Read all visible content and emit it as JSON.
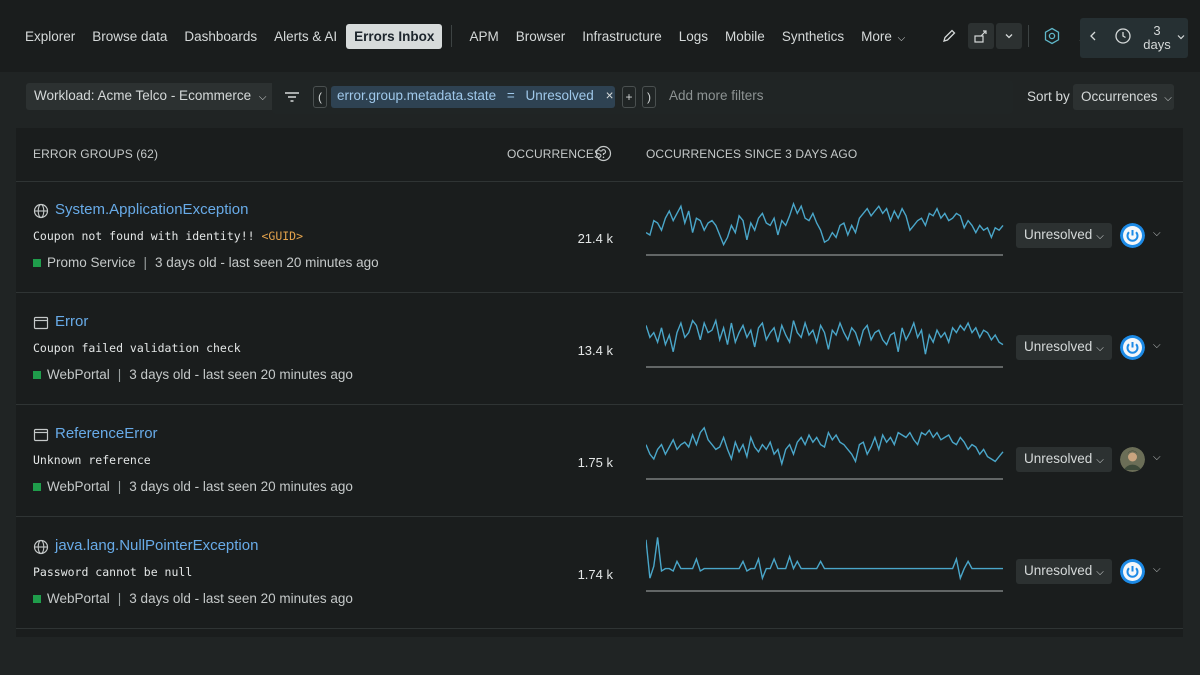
{
  "nav": {
    "items": [
      "Explorer",
      "Browse data",
      "Dashboards",
      "Alerts & AI",
      "Errors Inbox"
    ],
    "items2": [
      "APM",
      "Browser",
      "Infrastructure",
      "Logs",
      "Mobile",
      "Synthetics"
    ],
    "more": "More",
    "time_value": "3",
    "time_unit": "days"
  },
  "filters": {
    "workload": "Workload: Acme Telco - Ecommerce",
    "open_paren": "(",
    "close_paren": ")",
    "chip_field": "error.group.metadata.state",
    "chip_op": "=",
    "chip_value": "Unresolved",
    "chip_remove": "×",
    "plus": "+",
    "add_more_placeholder": "Add more filters",
    "sort_label": "Sort by",
    "sort_value": "Occurrences"
  },
  "table": {
    "col_groups": "ERROR GROUPS (62)",
    "col_occurrences": "OCCURRENCES",
    "col_since": "OCCURRENCES SINCE 3 DAYS AGO",
    "rows": [
      {
        "name": "System.ApplicationException",
        "message": "Coupon not found with identity!! ",
        "guid": "<GUID>",
        "service": "Promo Service",
        "sep": "|",
        "age": "3 days old - last seen 20 minutes ago",
        "count": "21.4 k",
        "status": "Unresolved",
        "icon": "globe-icon",
        "assignee": "power-icon",
        "spark": [
          0.3,
          0.25,
          0.55,
          0.5,
          0.35,
          0.6,
          0.75,
          0.55,
          0.7,
          0.85,
          0.5,
          0.75,
          0.3,
          0.6,
          0.55,
          0.35,
          0.5,
          0.55,
          0.45,
          0.25,
          0.05,
          0.2,
          0.45,
          0.3,
          0.65,
          0.55,
          0.15,
          0.5,
          0.35,
          0.6,
          0.7,
          0.5,
          0.45,
          0.6,
          0.25,
          0.55,
          0.45,
          0.65,
          0.9,
          0.7,
          0.85,
          0.6,
          0.55,
          0.7,
          0.5,
          0.35,
          0.1,
          0.15,
          0.3,
          0.2,
          0.45,
          0.5,
          0.25,
          0.45,
          0.3,
          0.6,
          0.7,
          0.8,
          0.65,
          0.75,
          0.85,
          0.7,
          0.8,
          0.55,
          0.75,
          0.6,
          0.8,
          0.65,
          0.35,
          0.45,
          0.55,
          0.6,
          0.45,
          0.7,
          0.65,
          0.8,
          0.6,
          0.7,
          0.55,
          0.6,
          0.7,
          0.65,
          0.4,
          0.55,
          0.45,
          0.3,
          0.45,
          0.35,
          0.4,
          0.2,
          0.4,
          0.35,
          0.45
        ]
      },
      {
        "name": "Error",
        "message": "Coupon failed validation check",
        "guid": "",
        "service": "WebPortal",
        "sep": "|",
        "age": "3 days old - last seen 20 minutes ago",
        "count": "13.4 k",
        "status": "Unresolved",
        "icon": "window-icon",
        "assignee": "power-icon",
        "spark": [
          0.7,
          0.45,
          0.55,
          0.35,
          0.65,
          0.3,
          0.5,
          0.15,
          0.55,
          0.75,
          0.45,
          0.55,
          0.8,
          0.7,
          0.4,
          0.75,
          0.55,
          0.6,
          0.8,
          0.4,
          0.65,
          0.3,
          0.75,
          0.35,
          0.55,
          0.7,
          0.45,
          0.6,
          0.25,
          0.65,
          0.75,
          0.4,
          0.55,
          0.65,
          0.35,
          0.7,
          0.5,
          0.35,
          0.8,
          0.55,
          0.45,
          0.75,
          0.5,
          0.6,
          0.35,
          0.7,
          0.55,
          0.2,
          0.6,
          0.5,
          0.75,
          0.55,
          0.4,
          0.65,
          0.55,
          0.3,
          0.6,
          0.7,
          0.4,
          0.55,
          0.6,
          0.4,
          0.3,
          0.5,
          0.55,
          0.15,
          0.65,
          0.4,
          0.55,
          0.75,
          0.45,
          0.6,
          0.1,
          0.5,
          0.35,
          0.6,
          0.45,
          0.55,
          0.35,
          0.65,
          0.55,
          0.7,
          0.6,
          0.75,
          0.55,
          0.65,
          0.45,
          0.6,
          0.55,
          0.4,
          0.5,
          0.35,
          0.3
        ]
      },
      {
        "name": "ReferenceError",
        "message": "Unknown reference",
        "guid": "",
        "service": "WebPortal",
        "sep": "|",
        "age": "3 days old - last seen 20 minutes ago",
        "count": "1.75 k",
        "status": "Unresolved",
        "icon": "window-icon",
        "assignee": "user-avatar",
        "spark": [
          0.55,
          0.35,
          0.25,
          0.45,
          0.55,
          0.35,
          0.5,
          0.65,
          0.45,
          0.55,
          0.6,
          0.5,
          0.75,
          0.55,
          0.8,
          0.9,
          0.65,
          0.55,
          0.45,
          0.5,
          0.7,
          0.45,
          0.25,
          0.6,
          0.4,
          0.55,
          0.3,
          0.7,
          0.5,
          0.4,
          0.55,
          0.45,
          0.6,
          0.35,
          0.45,
          0.15,
          0.45,
          0.55,
          0.35,
          0.6,
          0.7,
          0.55,
          0.75,
          0.6,
          0.7,
          0.55,
          0.5,
          0.8,
          0.65,
          0.75,
          0.6,
          0.55,
          0.45,
          0.35,
          0.2,
          0.55,
          0.6,
          0.35,
          0.5,
          0.7,
          0.45,
          0.75,
          0.6,
          0.7,
          0.55,
          0.8,
          0.75,
          0.7,
          0.8,
          0.65,
          0.55,
          0.8,
          0.75,
          0.85,
          0.7,
          0.8,
          0.65,
          0.7,
          0.75,
          0.6,
          0.55,
          0.7,
          0.6,
          0.45,
          0.55,
          0.5,
          0.35,
          0.45,
          0.3,
          0.25,
          0.2,
          0.3,
          0.4
        ]
      },
      {
        "name": "java.lang.NullPointerException",
        "message": "Password cannot be null",
        "guid": "",
        "service": "WebPortal",
        "sep": "|",
        "age": "3 days old - last seen 20 minutes ago",
        "count": "1.74 k",
        "status": "Unresolved",
        "icon": "globe-icon",
        "assignee": "power-icon",
        "spark": [
          0.9,
          0.1,
          0.35,
          0.95,
          0.25,
          0.3,
          0.3,
          0.25,
          0.45,
          0.3,
          0.3,
          0.3,
          0.3,
          0.5,
          0.25,
          0.3,
          0.3,
          0.3,
          0.3,
          0.3,
          0.3,
          0.3,
          0.3,
          0.3,
          0.3,
          0.45,
          0.25,
          0.3,
          0.3,
          0.5,
          0.1,
          0.3,
          0.3,
          0.5,
          0.3,
          0.3,
          0.3,
          0.55,
          0.3,
          0.45,
          0.3,
          0.3,
          0.3,
          0.3,
          0.3,
          0.45,
          0.3,
          0.3,
          0.3,
          0.3,
          0.3,
          0.3,
          0.3,
          0.3,
          0.3,
          0.3,
          0.3,
          0.3,
          0.3,
          0.3,
          0.3,
          0.3,
          0.3,
          0.3,
          0.3,
          0.3,
          0.3,
          0.3,
          0.3,
          0.3,
          0.3,
          0.3,
          0.3,
          0.3,
          0.3,
          0.3,
          0.3,
          0.3,
          0.3,
          0.3,
          0.5,
          0.1,
          0.3,
          0.45,
          0.3,
          0.3,
          0.3,
          0.3,
          0.3,
          0.3,
          0.3,
          0.3,
          0.3
        ]
      }
    ]
  },
  "colors": {
    "accent": "#68abe8",
    "sparkline": "#4aa6c9",
    "service_dot": "#1f9d4b",
    "guid": "#e3a24c"
  }
}
